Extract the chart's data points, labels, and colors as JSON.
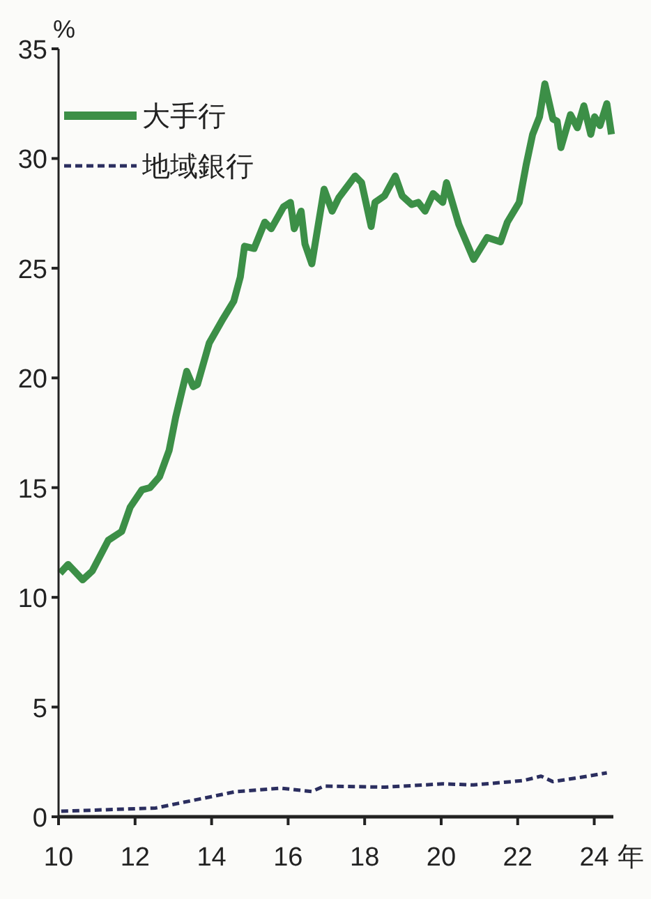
{
  "chart_data": {
    "type": "line",
    "ylabel": "%",
    "xlabel": "年",
    "xlim": [
      10,
      24.5
    ],
    "xticks": [
      10,
      12,
      14,
      16,
      18,
      20,
      22,
      24
    ],
    "ylim": [
      0,
      35
    ],
    "yticks": [
      0,
      5,
      10,
      15,
      20,
      25,
      30,
      35
    ],
    "grid": false,
    "legend": "top left",
    "series": [
      {
        "name": "大手行",
        "color": "#3c8f47",
        "line_style": "solid",
        "x": [
          10.04,
          10.25,
          10.63,
          10.88,
          11.3,
          11.65,
          11.87,
          12.18,
          12.39,
          12.64,
          12.89,
          13.06,
          13.17,
          13.35,
          13.52,
          13.63,
          13.94,
          14.3,
          14.58,
          14.75,
          14.86,
          15.11,
          15.39,
          15.56,
          15.88,
          16.06,
          16.16,
          16.34,
          16.44,
          16.62,
          16.94,
          17.15,
          17.32,
          17.75,
          17.92,
          18.17,
          18.27,
          18.52,
          18.8,
          18.98,
          19.23,
          19.4,
          19.58,
          19.79,
          20.04,
          20.14,
          20.46,
          20.85,
          21.2,
          21.55,
          21.73,
          22.04,
          22.22,
          22.39,
          22.57,
          22.71,
          22.92,
          23.03,
          23.13,
          23.38,
          23.56,
          23.73,
          23.91,
          24.01,
          24.15,
          24.33,
          24.45
        ],
        "values": [
          11.1,
          11.5,
          10.8,
          11.2,
          12.6,
          13.0,
          14.1,
          14.9,
          15.0,
          15.5,
          16.7,
          18.2,
          19.0,
          20.3,
          19.6,
          19.7,
          21.6,
          22.7,
          23.5,
          24.6,
          26.0,
          25.9,
          27.1,
          26.8,
          27.8,
          28.0,
          26.8,
          27.6,
          26.1,
          25.2,
          28.6,
          27.6,
          28.2,
          29.2,
          28.9,
          26.9,
          28.0,
          28.3,
          29.2,
          28.3,
          27.9,
          28.0,
          27.6,
          28.4,
          28.0,
          28.9,
          27.0,
          25.4,
          26.4,
          26.2,
          27.1,
          28.0,
          29.7,
          31.1,
          31.9,
          33.4,
          31.8,
          31.7,
          30.5,
          32.0,
          31.4,
          32.4,
          31.1,
          31.9,
          31.5,
          32.5,
          31.1
        ]
      },
      {
        "name": "地域銀行",
        "color": "#2b2e5f",
        "line_style": "dashed",
        "x": [
          10.07,
          12.54,
          13.1,
          14.65,
          15.81,
          16.62,
          16.94,
          18.52,
          20.04,
          20.85,
          22.15,
          22.61,
          22.92,
          23.66,
          24.33
        ],
        "values": [
          0.25,
          0.4,
          0.6,
          1.15,
          1.3,
          1.15,
          1.4,
          1.35,
          1.5,
          1.45,
          1.65,
          1.85,
          1.6,
          1.8,
          2.0
        ]
      }
    ]
  }
}
